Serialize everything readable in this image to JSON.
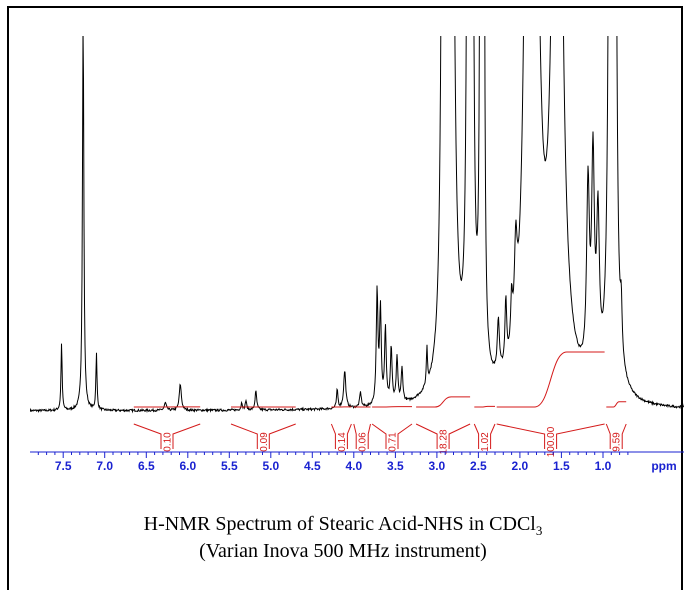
{
  "chart_data": {
    "type": "line",
    "title": "H-NMR Spectrum of Stearic Acid-NHS in CDCl",
    "title_subscript": "3",
    "subtitle": "(Varian Inova 500 MHz instrument)",
    "xlabel": "ppm",
    "ylabel": "",
    "x_reversed": true,
    "xlim": [
      7.9,
      0.0
    ],
    "ylim": [
      0,
      100
    ],
    "grid": false,
    "ticks": [
      {
        "value": 7.5,
        "label": "7.5"
      },
      {
        "value": 7.0,
        "label": "7.0"
      },
      {
        "value": 6.5,
        "label": "6.5"
      },
      {
        "value": 6.0,
        "label": "6.0"
      },
      {
        "value": 5.5,
        "label": "5.5"
      },
      {
        "value": 5.0,
        "label": "5.0"
      },
      {
        "value": 4.5,
        "label": "4.5"
      },
      {
        "value": 4.0,
        "label": "4.0"
      },
      {
        "value": 3.5,
        "label": "3.5"
      },
      {
        "value": 3.0,
        "label": "3.0"
      },
      {
        "value": 2.5,
        "label": "2.5"
      },
      {
        "value": 2.0,
        "label": "2.0"
      },
      {
        "value": 1.5,
        "label": "1.5"
      },
      {
        "value": 1.0,
        "label": "1.0"
      }
    ],
    "peaks": [
      {
        "ppm": 7.52,
        "height": 18,
        "width": 0.008
      },
      {
        "ppm": 7.26,
        "height": 105,
        "width": 0.01
      },
      {
        "ppm": 7.1,
        "height": 15,
        "width": 0.008
      },
      {
        "ppm": 6.27,
        "height": 2,
        "width": 0.015
      },
      {
        "ppm": 6.09,
        "height": 7,
        "width": 0.015
      },
      {
        "ppm": 5.35,
        "height": 2,
        "width": 0.01
      },
      {
        "ppm": 5.3,
        "height": 2.5,
        "width": 0.01
      },
      {
        "ppm": 5.18,
        "height": 5,
        "width": 0.012
      },
      {
        "ppm": 4.2,
        "height": 5,
        "width": 0.01
      },
      {
        "ppm": 4.11,
        "height": 10,
        "width": 0.015
      },
      {
        "ppm": 3.92,
        "height": 4,
        "width": 0.012
      },
      {
        "ppm": 3.72,
        "height": 30,
        "width": 0.012
      },
      {
        "ppm": 3.68,
        "height": 25,
        "width": 0.012
      },
      {
        "ppm": 3.62,
        "height": 20,
        "width": 0.012
      },
      {
        "ppm": 3.55,
        "height": 15,
        "width": 0.012
      },
      {
        "ppm": 3.48,
        "height": 12,
        "width": 0.012
      },
      {
        "ppm": 3.42,
        "height": 9,
        "width": 0.012
      },
      {
        "ppm": 3.12,
        "height": 10,
        "width": 0.008
      },
      {
        "ppm": 2.92,
        "height": 300,
        "width": 0.02
      },
      {
        "ppm": 2.83,
        "height": 300,
        "width": 0.03
      },
      {
        "ppm": 2.62,
        "height": 300,
        "width": 0.015
      },
      {
        "ppm": 2.58,
        "height": 300,
        "width": 0.015
      },
      {
        "ppm": 2.47,
        "height": 300,
        "width": 0.01
      },
      {
        "ppm": 2.44,
        "height": 300,
        "width": 0.01
      },
      {
        "ppm": 2.26,
        "height": 14,
        "width": 0.015
      },
      {
        "ppm": 2.17,
        "height": 17,
        "width": 0.012
      },
      {
        "ppm": 2.1,
        "height": 12,
        "width": 0.012
      },
      {
        "ppm": 2.05,
        "height": 22,
        "width": 0.02
      },
      {
        "ppm": 1.93,
        "height": 69,
        "width": 0.04
      },
      {
        "ppm": 1.84,
        "height": 300,
        "width": 0.05
      },
      {
        "ppm": 1.55,
        "height": 300,
        "width": 0.05
      },
      {
        "ppm": 1.18,
        "height": 49,
        "width": 0.02
      },
      {
        "ppm": 1.12,
        "height": 56,
        "width": 0.02
      },
      {
        "ppm": 1.06,
        "height": 40,
        "width": 0.02
      },
      {
        "ppm": 0.91,
        "height": 300,
        "width": 0.015
      },
      {
        "ppm": 0.89,
        "height": 300,
        "width": 0.015
      },
      {
        "ppm": 0.86,
        "height": 300,
        "width": 0.015
      },
      {
        "ppm": 0.78,
        "height": 12,
        "width": 0.012
      },
      {
        "ppm": 0.0,
        "height": 10,
        "width": 0.006
      }
    ],
    "integrals": [
      {
        "from": 6.65,
        "to": 5.85,
        "label": "0.10"
      },
      {
        "from": 5.48,
        "to": 4.7,
        "label": "0.09"
      },
      {
        "from": 4.27,
        "to": 4.03,
        "label": "0.14"
      },
      {
        "from": 4.0,
        "to": 3.8,
        "label": "0.06"
      },
      {
        "from": 3.78,
        "to": 3.3,
        "label": "0.71"
      },
      {
        "from": 3.25,
        "to": 2.6,
        "label": "18.28"
      },
      {
        "from": 2.55,
        "to": 2.3,
        "label": "1.02"
      },
      {
        "from": 2.28,
        "to": 0.98,
        "label": "100.00"
      },
      {
        "from": 0.96,
        "to": 0.72,
        "label": "9.59"
      }
    ]
  }
}
